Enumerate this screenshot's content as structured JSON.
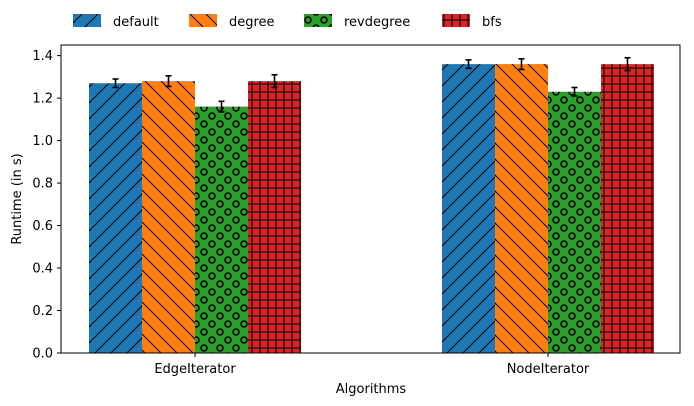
{
  "chart_data": {
    "type": "bar",
    "categories": [
      "EdgeIterator",
      "NodeIterator"
    ],
    "series": [
      {
        "name": "default",
        "values": [
          1.27,
          1.36
        ],
        "errors": [
          0.02,
          0.02
        ],
        "color": "#1f77b4",
        "hatch": "diag-fwd"
      },
      {
        "name": "degree",
        "values": [
          1.28,
          1.36
        ],
        "errors": [
          0.025,
          0.025
        ],
        "color": "#ff7f0e",
        "hatch": "diag-back"
      },
      {
        "name": "revdegree",
        "values": [
          1.16,
          1.23
        ],
        "errors": [
          0.025,
          0.02
        ],
        "color": "#2ca02c",
        "hatch": "circles"
      },
      {
        "name": "bfs",
        "values": [
          1.28,
          1.36
        ],
        "errors": [
          0.03,
          0.03
        ],
        "color": "#d62728",
        "hatch": "grid"
      }
    ],
    "title": "",
    "xlabel": "Algorithms",
    "ylabel": "Runtime (in s)",
    "ylim": [
      0,
      1.45
    ],
    "yticks": [
      "0.0",
      "0.2",
      "0.4",
      "0.6",
      "0.8",
      "1.0",
      "1.2",
      "1.4"
    ],
    "grid": false,
    "legend": "top-left, above axes, single row"
  }
}
